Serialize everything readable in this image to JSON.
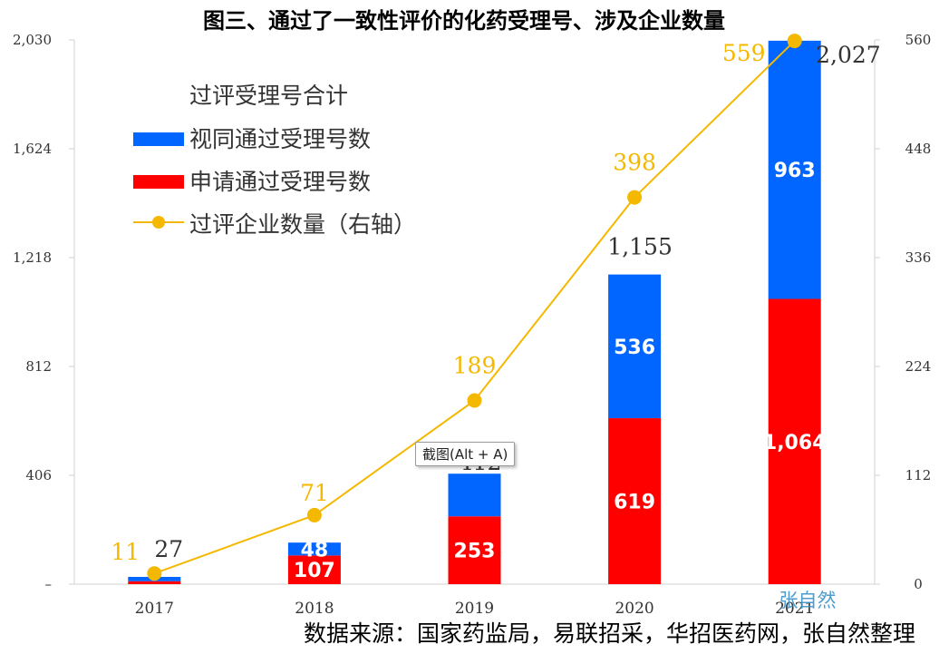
{
  "chart_data": {
    "type": "bar",
    "title": "图三、通过了一致性评价的化药受理号、涉及企业数量",
    "categories": [
      "2017",
      "2018",
      "2019",
      "2020",
      "2021"
    ],
    "series": [
      {
        "name": "申请通过受理号数",
        "kind": "bar",
        "color": "#ff0000",
        "values": [
          11,
          107,
          253,
          619,
          1064
        ],
        "labels": [
          "",
          "107",
          "253",
          "619",
          "1,064"
        ]
      },
      {
        "name": "视同通过受理号数",
        "kind": "bar",
        "color": "#0066ff",
        "values": [
          16,
          48,
          159,
          536,
          963
        ],
        "labels": [
          "",
          "48",
          "",
          "536",
          "963"
        ]
      },
      {
        "name": "过评企业数量（右轴）",
        "kind": "line",
        "axis": "right",
        "color": "#f5b800",
        "values": [
          11,
          71,
          189,
          398,
          559
        ],
        "labels": [
          "11",
          "71",
          "189",
          "398",
          "559"
        ]
      }
    ],
    "totals": {
      "name": "过评受理号合计",
      "values": [
        27,
        155,
        412,
        1155,
        2027
      ],
      "labels": [
        "27",
        "",
        "412",
        "1,155",
        "2,027"
      ]
    },
    "left_axis": {
      "ylim": [
        0,
        2030
      ],
      "ticks": [
        0,
        406,
        812,
        1218,
        1624,
        2030
      ],
      "tick_labels": [
        "–",
        "406",
        "812",
        "1,218",
        "1,624",
        "2,030"
      ]
    },
    "right_axis": {
      "ylim": [
        0,
        560
      ],
      "ticks": [
        0,
        112,
        224,
        336,
        448,
        560
      ],
      "tick_labels": [
        "0",
        "112",
        "224",
        "336",
        "448",
        "560"
      ]
    },
    "xlabel": "",
    "ylabel": "",
    "grid": false,
    "legend_position": "top-left"
  },
  "legend": {
    "totals_label": "过评受理号合计",
    "items": [
      "视同通过受理号数",
      "申请通过受理号数",
      "过评企业数量（右轴）"
    ]
  },
  "source_note": "数据来源：国家药监局，易联招采，华招医药网，张自然整理",
  "watermark_text": "张自然",
  "tooltip_text": "截图(Alt + A)"
}
